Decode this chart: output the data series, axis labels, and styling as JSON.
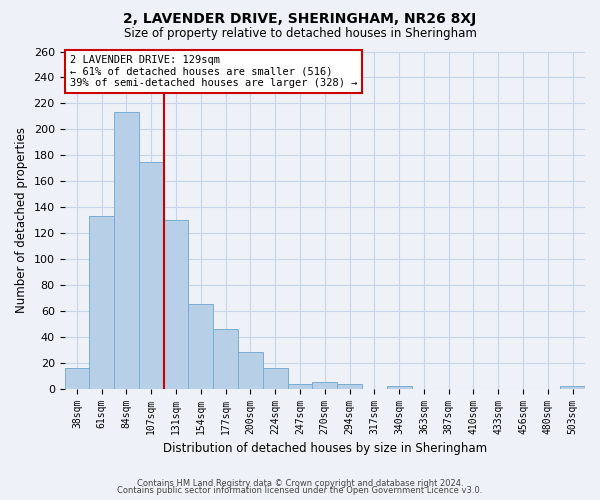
{
  "title": "2, LAVENDER DRIVE, SHERINGHAM, NR26 8XJ",
  "subtitle": "Size of property relative to detached houses in Sheringham",
  "xlabel": "Distribution of detached houses by size in Sheringham",
  "ylabel": "Number of detached properties",
  "bar_labels": [
    "38sqm",
    "61sqm",
    "84sqm",
    "107sqm",
    "131sqm",
    "154sqm",
    "177sqm",
    "200sqm",
    "224sqm",
    "247sqm",
    "270sqm",
    "294sqm",
    "317sqm",
    "340sqm",
    "363sqm",
    "387sqm",
    "410sqm",
    "433sqm",
    "456sqm",
    "480sqm",
    "503sqm"
  ],
  "bar_values": [
    16,
    133,
    213,
    175,
    130,
    65,
    46,
    28,
    16,
    4,
    5,
    4,
    0,
    2,
    0,
    0,
    0,
    0,
    0,
    0,
    2
  ],
  "bar_color": "#b8cfe8",
  "bar_edge_color": "#7aadd4",
  "grid_color": "#c8d4e8",
  "background_color": "#eef2f8",
  "vline_color": "#cc0000",
  "annotation_text": "2 LAVENDER DRIVE: 129sqm\n← 61% of detached houses are smaller (516)\n39% of semi-detached houses are larger (328) →",
  "annotation_box_color": "#ffffff",
  "annotation_box_edge": "#cc0000",
  "ylim": [
    0,
    260
  ],
  "yticks": [
    0,
    20,
    40,
    60,
    80,
    100,
    120,
    140,
    160,
    180,
    200,
    220,
    240,
    260
  ],
  "footer_line1": "Contains HM Land Registry data © Crown copyright and database right 2024.",
  "footer_line2": "Contains public sector information licensed under the Open Government Licence v3.0."
}
